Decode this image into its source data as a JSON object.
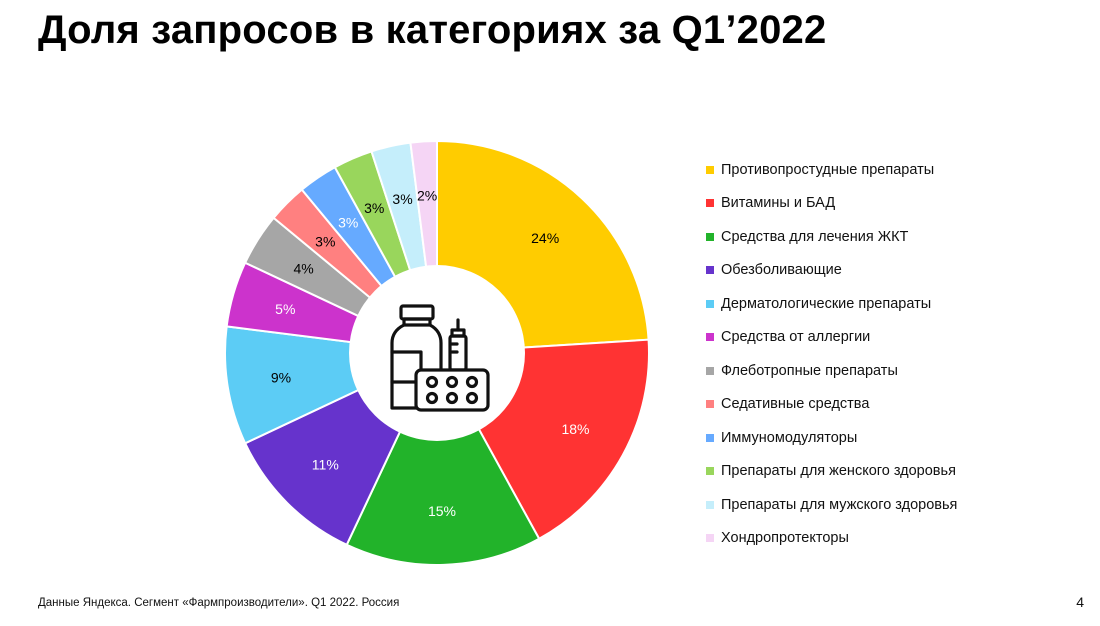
{
  "title": "Доля запросов в категориях за Q1’2022",
  "footnote": "Данные Яндекса. Сегмент «Фармпроизводители». Q1 2022. Россия",
  "page_number": "4",
  "center_icon": "medicine-bottle-syringe-pills-icon",
  "chart_data": {
    "type": "pie",
    "donut": true,
    "legend_position": "right",
    "categories": [
      "Противопростудные препараты",
      "Витамины и БАД",
      "Средства для лечения ЖКТ",
      "Обезболивающие",
      "Дерматологические препараты",
      "Средства от аллергии",
      "Флеботропные препараты",
      "Седативные средства",
      "Иммуномодуляторы",
      "Препараты для женского здоровья",
      "Препараты для мужского здоровья",
      "Хондропротекторы"
    ],
    "values": [
      24,
      18,
      15,
      11,
      9,
      5,
      4,
      3,
      3,
      3,
      3,
      2
    ],
    "labels": [
      "24%",
      "18%",
      "15%",
      "11%",
      "9%",
      "5%",
      "4%",
      "3%",
      "3%",
      "3%",
      "3%",
      "2%"
    ],
    "colors": [
      "#FFCC00",
      "#FF3333",
      "#22B32A",
      "#6633CC",
      "#5CCCF5",
      "#CC33CC",
      "#A6A6A6",
      "#FF8080",
      "#66AAFF",
      "#99D65C",
      "#C5EEFB",
      "#F5D5F5"
    ],
    "label_colors": [
      "#000000",
      "#FFFFFF",
      "#FFFFFF",
      "#FFFFFF",
      "#000000",
      "#FFFFFF",
      "#000000",
      "#000000",
      "#FFFFFF",
      "#000000",
      "#000000",
      "#000000"
    ]
  }
}
